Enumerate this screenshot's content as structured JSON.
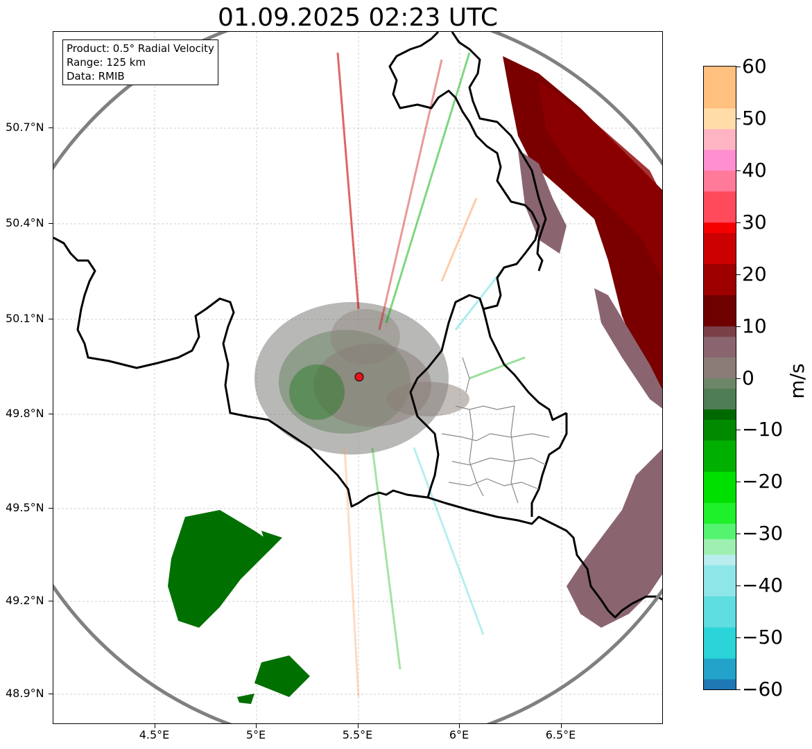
{
  "title": "01.09.2025 02:23 UTC",
  "info": {
    "product": "Product: 0.5° Radial Velocity",
    "range": "Range: 125 km",
    "data": "Data: RMIB"
  },
  "axes": {
    "lat_labels": [
      "50.7°N",
      "50.4°N",
      "50.1°N",
      "49.8°N",
      "49.5°N",
      "49.2°N",
      "48.9°N"
    ],
    "lat_values": [
      50.7,
      50.4,
      50.1,
      49.8,
      49.5,
      49.2,
      48.9
    ],
    "lon_labels": [
      "4.5°E",
      "5°E",
      "5.5°E",
      "6°E",
      "6.5°E"
    ],
    "lon_values": [
      4.5,
      5.0,
      5.5,
      6.0,
      6.5
    ],
    "lon_range": [
      4.0,
      7.0
    ],
    "lat_range": [
      48.8,
      51.0
    ]
  },
  "radar_site": {
    "lon": 5.505,
    "lat": 49.914,
    "color": "#e8141c"
  },
  "colorbar": {
    "unit": "m/s",
    "range": [
      -60,
      60
    ],
    "tick_labels": [
      "60",
      "50",
      "40",
      "30",
      "20",
      "10",
      "0",
      "−10",
      "−20",
      "−30",
      "−40",
      "−50",
      "−60"
    ],
    "tick_values": [
      60,
      50,
      40,
      30,
      20,
      10,
      0,
      -10,
      -20,
      -30,
      -40,
      -50,
      -60
    ],
    "stops": [
      {
        "v": -60,
        "c": "#1f77b4"
      },
      {
        "v": -58,
        "c": "#23a3c9"
      },
      {
        "v": -54,
        "c": "#2ad4d8"
      },
      {
        "v": -48,
        "c": "#5fdde0"
      },
      {
        "v": -42,
        "c": "#8fe6e8"
      },
      {
        "v": -36,
        "c": "#b9edef"
      },
      {
        "v": -34,
        "c": "#9ff0b0"
      },
      {
        "v": -31,
        "c": "#55f470"
      },
      {
        "v": -28,
        "c": "#1ef02a"
      },
      {
        "v": -24,
        "c": "#00e000"
      },
      {
        "v": -18,
        "c": "#00b000"
      },
      {
        "v": -12,
        "c": "#008a00"
      },
      {
        "v": -8,
        "c": "#006800"
      },
      {
        "v": -6,
        "c": "#4f7d54"
      },
      {
        "v": -2,
        "c": "#6e8668"
      },
      {
        "v": 0,
        "c": "#8a7d78"
      },
      {
        "v": 4,
        "c": "#8a6570"
      },
      {
        "v": 8,
        "c": "#7a4048"
      },
      {
        "v": 10,
        "c": "#6e0000"
      },
      {
        "v": 16,
        "c": "#9e0000"
      },
      {
        "v": 22,
        "c": "#cc0000"
      },
      {
        "v": 28,
        "c": "#f50000"
      },
      {
        "v": 30,
        "c": "#ff4a5c"
      },
      {
        "v": 36,
        "c": "#ff7a98"
      },
      {
        "v": 40,
        "c": "#ff8fd0"
      },
      {
        "v": 44,
        "c": "#ffb4c4"
      },
      {
        "v": 48,
        "c": "#ffdca8"
      },
      {
        "v": 52,
        "c": "#ffc080"
      },
      {
        "v": 60,
        "c": "#ff9a55"
      }
    ]
  }
}
